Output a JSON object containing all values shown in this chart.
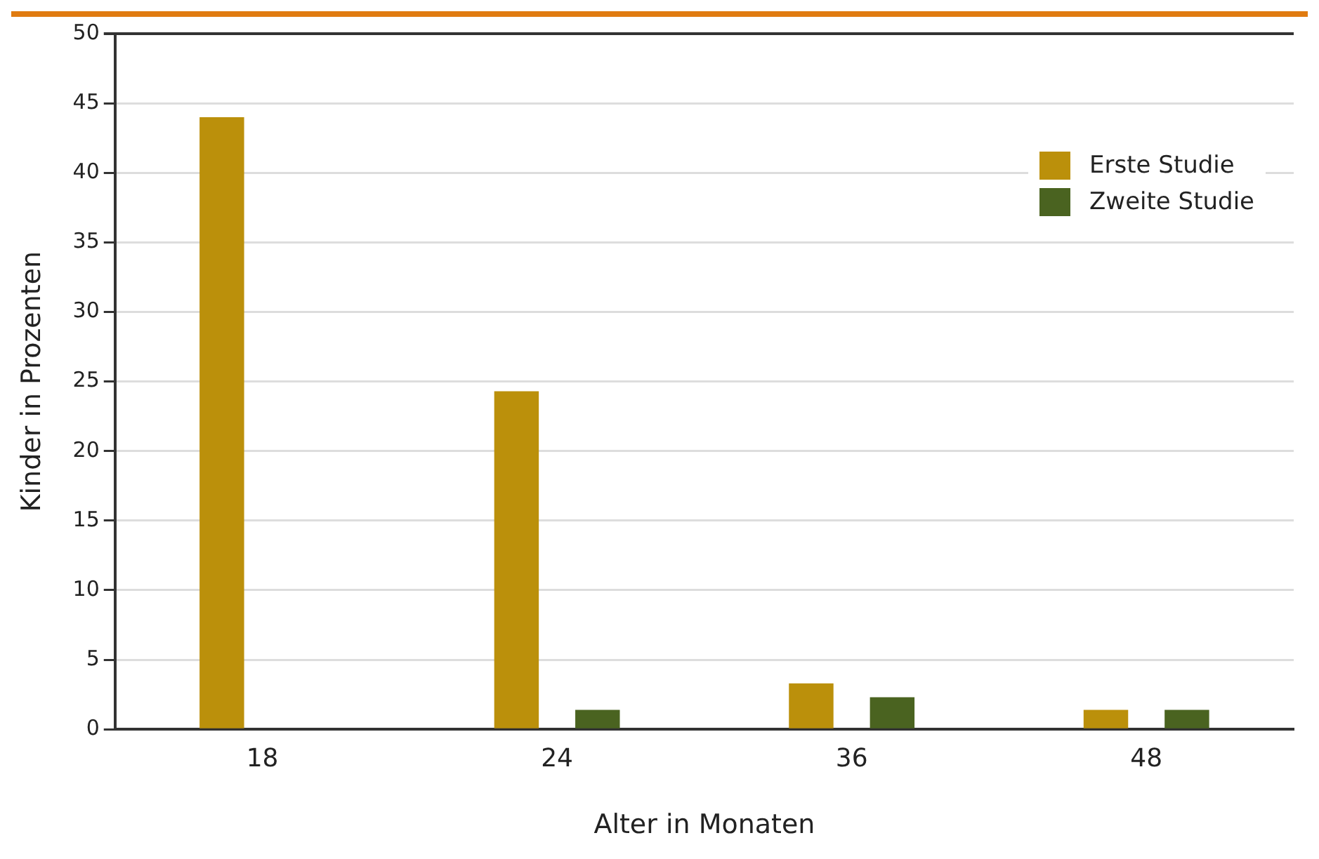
{
  "chart_data": {
    "type": "bar",
    "xlabel": "Alter in Monaten",
    "ylabel": "Kinder in Prozenten",
    "categories": [
      "18",
      "24",
      "36",
      "48"
    ],
    "series": [
      {
        "name": "Erste Studie",
        "color": "#bb900b",
        "values": [
          44,
          24.3,
          3.3,
          1.4
        ]
      },
      {
        "name": "Zweite Studie",
        "color": "#4a6320",
        "values": [
          null,
          1.4,
          2.3,
          1.4
        ]
      }
    ],
    "ylim": [
      0,
      50
    ],
    "yticks": [
      0,
      5,
      10,
      15,
      20,
      25,
      30,
      35,
      40,
      45,
      50
    ],
    "grid": "y",
    "legend": "top right"
  }
}
